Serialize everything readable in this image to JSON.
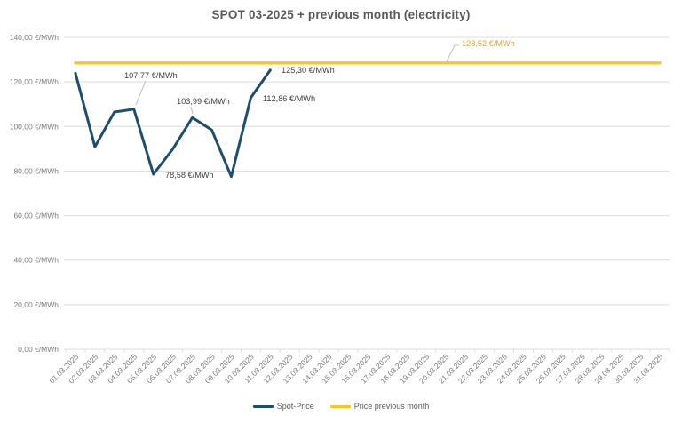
{
  "title": "SPOT 03-2025 + previous month (electricity)",
  "legend": {
    "spot_label": "Spot-Price",
    "prev_label": "Price previous month"
  },
  "colors": {
    "spot_line": "#1F4E6B",
    "prev_line": "#FCC32B",
    "prev_label_text": "#E2A42C",
    "grid": "#DCDCDC",
    "axis_text": "#7A7A7A",
    "data_label_text": "#404040",
    "leader_line": "#BFBFBF",
    "title_text": "#595959"
  },
  "chart_data": {
    "type": "line",
    "title": "SPOT 03-2025 + previous month (electricity)",
    "xlabel": "",
    "ylabel": "",
    "ylim": [
      0,
      140
    ],
    "grid": true,
    "legend_position": "bottom",
    "y_ticks": [
      {
        "value": 0,
        "label": "0,00 €/MWh"
      },
      {
        "value": 20,
        "label": "20,00 €/MWh"
      },
      {
        "value": 40,
        "label": "40,00 €/MWh"
      },
      {
        "value": 60,
        "label": "60,00 €/MWh"
      },
      {
        "value": 80,
        "label": "80,00 €/MWh"
      },
      {
        "value": 100,
        "label": "100,00 €/MWh"
      },
      {
        "value": 120,
        "label": "120,00 €/MWh"
      },
      {
        "value": 140,
        "label": "140,00 €/MWh"
      }
    ],
    "categories": [
      "01.03.2025",
      "02.03.2025",
      "03.03.2025",
      "04.03.2025",
      "05.03.2025",
      "06.03.2025",
      "07.03.2025",
      "08.03.2025",
      "09.03.2025",
      "10.03.2025",
      "11.03.2025",
      "12.03.2025",
      "13.03.2025",
      "14.03.2025",
      "15.03.2025",
      "16.03.2025",
      "17.03.2025",
      "18.03.2025",
      "19.03.2025",
      "20.03.2025",
      "21.03.2025",
      "22.03.2025",
      "23.03.2025",
      "24.03.2025",
      "25.03.2025",
      "26.03.2025",
      "27.03.2025",
      "28.03.2025",
      "29.03.2025",
      "30.03.2025",
      "31.03.2025"
    ],
    "series": [
      {
        "name": "Spot-Price",
        "type": "line",
        "color": "#1F4E6B",
        "values": [
          123.9,
          90.9,
          106.5,
          107.77,
          78.58,
          89.9,
          103.99,
          98.4,
          77.5,
          112.86,
          125.3
        ]
      },
      {
        "name": "Price previous month",
        "type": "line",
        "color": "#FCC32B",
        "constant": 128.52
      }
    ],
    "data_labels": [
      {
        "series": "Spot-Price",
        "category": "04.03.2025",
        "text": "107,77 €/MWh"
      },
      {
        "series": "Spot-Price",
        "category": "05.03.2025",
        "text": "78,58 €/MWh"
      },
      {
        "series": "Spot-Price",
        "category": "07.03.2025",
        "text": "103,99 €/MWh"
      },
      {
        "series": "Spot-Price",
        "category": "10.03.2025",
        "text": "112,86 €/MWh"
      },
      {
        "series": "Spot-Price",
        "category": "11.03.2025",
        "text": "125,30 €/MWh"
      },
      {
        "series": "Price previous month",
        "text": "128,52 €/MWh"
      }
    ]
  }
}
